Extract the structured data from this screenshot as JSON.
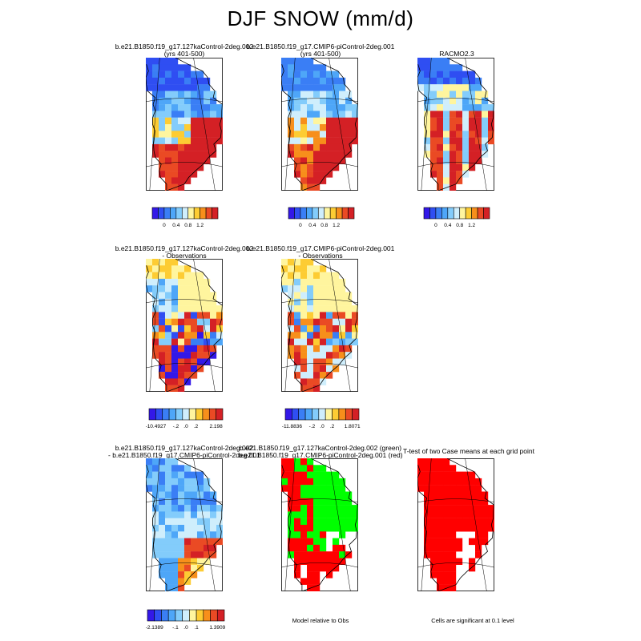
{
  "title": "DJF SNOW (mm/d)",
  "colors": {
    "abs": [
      "#3318e8",
      "#2f4ef2",
      "#3a7ef5",
      "#4ea6f8",
      "#83ccfb",
      "#cfeefc",
      "#fff59e",
      "#fdcc33",
      "#f78f1b",
      "#ea4a24",
      "#d42025"
    ],
    "diff": [
      "#3318e8",
      "#2f4ef2",
      "#3a7ef5",
      "#4ea6f8",
      "#83ccfb",
      "#cfeefc",
      "#fff59e",
      "#fdcc33",
      "#f78f1b",
      "#ea4a24",
      "#d42025"
    ],
    "green": "#00ff00",
    "red": "#ff0000",
    "black": "#000000"
  },
  "panels": [
    {
      "id": "p1",
      "title": [
        "b.e21.B1850.f19_g17.127kaControl-2deg.002",
        "(yrs 401-500)"
      ],
      "pattern": "absA",
      "colorbar": {
        "type": "abs",
        "labels": [
          "0",
          "0.4",
          "0.8",
          "1.2"
        ]
      }
    },
    {
      "id": "p2",
      "title": [
        "b.e21.B1850.f19_g17.CMIP6-piControl-2deg.001",
        "(yrs 401-500)"
      ],
      "pattern": "absB",
      "colorbar": {
        "type": "abs",
        "labels": [
          "0",
          "0.4",
          "0.8",
          "1.2"
        ]
      }
    },
    {
      "id": "p3",
      "title": [
        "RACMO2.3"
      ],
      "pattern": "absC",
      "colorbar": {
        "type": "abs",
        "labels": [
          "0",
          "0.4",
          "0.8",
          "1.2"
        ]
      }
    },
    {
      "id": "p4",
      "title": [
        "b.e21.B1850.f19_g17.127kaControl-2deg.002",
        "- Observations"
      ],
      "pattern": "diffA",
      "colorbar": {
        "type": "diff",
        "labels": [
          "-10.4927",
          "-.2",
          ".0",
          ".2",
          "2.198"
        ]
      }
    },
    {
      "id": "p5",
      "title": [
        "b.e21.B1850.f19_g17.CMIP6-piControl-2deg.001",
        "- Observations"
      ],
      "pattern": "diffB",
      "colorbar": {
        "type": "diff",
        "labels": [
          "-11.8836",
          "-.2",
          ".0",
          ".2",
          "1.8071"
        ]
      }
    },
    {
      "id": "p7",
      "title": [
        "b.e21.B1850.f19_g17.127kaControl-2deg.002",
        "- b.e21.B1850.f19_g17.CMIP6-piControl-2deg.001"
      ],
      "pattern": "diffC",
      "colorbar": {
        "type": "diff",
        "labels": [
          "-2.1389",
          "-.1",
          ".0",
          ".1",
          "1.3909"
        ]
      }
    },
    {
      "id": "p8",
      "title": [
        "b.e21.B1850.f19_g17.127kaControl-2deg.002 (green)",
        "b.e21.B1850.f19_g17.CMIP6-piControl-2deg.001 (red)"
      ],
      "pattern": "greenred",
      "caption": "Model relative to Obs"
    },
    {
      "id": "p9",
      "title": [
        "T-test of two Case means at each grid point"
      ],
      "pattern": "ttest",
      "caption": "Cells are significant at 0.1 level"
    }
  ]
}
